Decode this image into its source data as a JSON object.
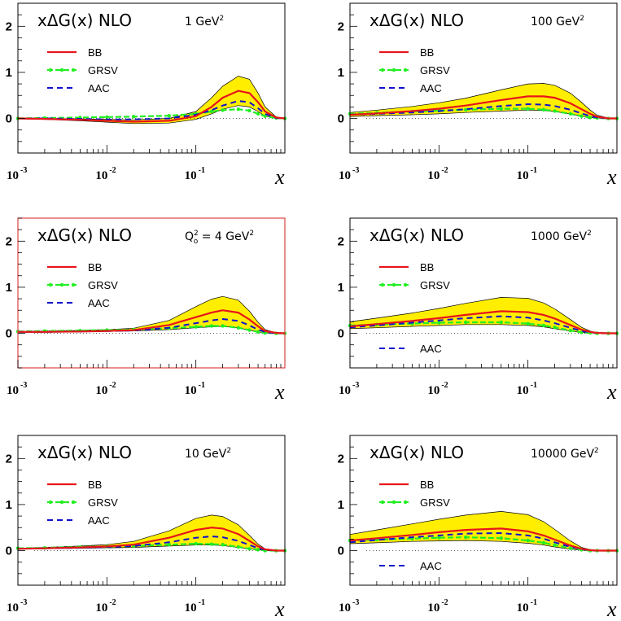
{
  "figure": {
    "title_text": "xΔG(x)  NLO",
    "x_axis_label": "x",
    "x_tick_labels": [
      {
        "base": "10",
        "exp": "-3"
      },
      {
        "base": "10",
        "exp": "-2"
      },
      {
        "base": "10",
        "exp": "-1"
      }
    ],
    "y_tick_labels": [
      "0",
      "1",
      "2"
    ],
    "colors": {
      "BB": "#e8151b",
      "GRSV": "#22ee22",
      "AAC": "#1010cc",
      "band": "#ffee00",
      "reference_box": "#dd4444"
    }
  },
  "chart_data": [
    {
      "type": "line",
      "title": "xΔG(x)  NLO",
      "scale_label": {
        "main": "1 GeV",
        "sup": "2"
      },
      "xlabel": "x",
      "xlog": true,
      "xlim": [
        0.001,
        1
      ],
      "ylim": [
        -0.75,
        2.5
      ],
      "legend": [
        "BB",
        "GRSV",
        "AAC"
      ],
      "legend_layout": "stacked-top-left",
      "x": [
        0.001,
        0.002,
        0.005,
        0.01,
        0.02,
        0.05,
        0.1,
        0.15,
        0.2,
        0.3,
        0.4,
        0.5,
        0.6,
        0.8,
        1.0
      ],
      "series": [
        {
          "name": "BB",
          "values": [
            0.0,
            -0.01,
            -0.03,
            -0.05,
            -0.07,
            -0.05,
            0.05,
            0.25,
            0.45,
            0.6,
            0.55,
            0.35,
            0.15,
            0.02,
            0.0
          ]
        },
        {
          "name": "GRSV",
          "values": [
            0.0,
            0.01,
            0.02,
            0.03,
            0.04,
            0.06,
            0.1,
            0.15,
            0.18,
            0.2,
            0.17,
            0.1,
            0.05,
            0.01,
            0.0
          ]
        },
        {
          "name": "AAC",
          "values": [
            0.0,
            0.0,
            -0.01,
            -0.02,
            -0.02,
            0.0,
            0.08,
            0.18,
            0.28,
            0.38,
            0.35,
            0.22,
            0.1,
            0.01,
            0.0
          ]
        }
      ],
      "band": {
        "upper": [
          0.01,
          0.0,
          -0.01,
          -0.02,
          -0.03,
          0.0,
          0.15,
          0.45,
          0.7,
          0.92,
          0.85,
          0.55,
          0.25,
          0.03,
          0.0
        ],
        "lower": [
          -0.01,
          -0.02,
          -0.05,
          -0.08,
          -0.11,
          -0.1,
          -0.02,
          0.1,
          0.2,
          0.28,
          0.25,
          0.15,
          0.05,
          0.01,
          0.0
        ]
      }
    },
    {
      "type": "line",
      "title": "xΔG(x)  NLO",
      "scale_label": {
        "main": "100 GeV",
        "sup": "2"
      },
      "xlabel": "x",
      "xlog": true,
      "xlim": [
        0.001,
        1
      ],
      "ylim": [
        -0.75,
        2.5
      ],
      "legend": [
        "BB",
        "GRSV",
        "AAC"
      ],
      "legend_layout": "stacked-top-left",
      "x": [
        0.001,
        0.002,
        0.005,
        0.01,
        0.02,
        0.05,
        0.1,
        0.15,
        0.2,
        0.3,
        0.4,
        0.5,
        0.6,
        0.8,
        1.0
      ],
      "series": [
        {
          "name": "BB",
          "values": [
            0.08,
            0.11,
            0.16,
            0.21,
            0.28,
            0.4,
            0.48,
            0.48,
            0.45,
            0.33,
            0.2,
            0.1,
            0.04,
            0.0,
            0.0
          ]
        },
        {
          "name": "GRSV",
          "values": [
            0.1,
            0.12,
            0.15,
            0.17,
            0.19,
            0.21,
            0.21,
            0.19,
            0.16,
            0.1,
            0.05,
            0.02,
            0.01,
            0.0,
            0.0
          ]
        },
        {
          "name": "AAC",
          "values": [
            0.08,
            0.1,
            0.13,
            0.16,
            0.2,
            0.27,
            0.31,
            0.3,
            0.27,
            0.19,
            0.11,
            0.05,
            0.02,
            0.0,
            0.0
          ]
        }
      ],
      "band": {
        "upper": [
          0.13,
          0.18,
          0.26,
          0.34,
          0.44,
          0.62,
          0.75,
          0.76,
          0.72,
          0.55,
          0.35,
          0.18,
          0.07,
          0.01,
          0.0
        ],
        "lower": [
          0.04,
          0.06,
          0.08,
          0.1,
          0.13,
          0.16,
          0.18,
          0.17,
          0.15,
          0.1,
          0.05,
          0.02,
          0.01,
          0.0,
          0.0
        ]
      }
    },
    {
      "type": "line",
      "title": "xΔG(x)  NLO",
      "scale_label": {
        "prefix": "Q",
        "sub": "o",
        "main": " = 4 GeV",
        "sup": "2"
      },
      "xlabel": "x",
      "xlog": true,
      "xlim": [
        0.001,
        1
      ],
      "ylim": [
        -0.75,
        2.5
      ],
      "legend": [
        "BB",
        "GRSV",
        "AAC"
      ],
      "legend_layout": "stacked-top-left",
      "x": [
        0.001,
        0.002,
        0.005,
        0.01,
        0.02,
        0.05,
        0.1,
        0.15,
        0.2,
        0.3,
        0.4,
        0.5,
        0.6,
        0.8,
        1.0
      ],
      "series": [
        {
          "name": "BB",
          "values": [
            0.03,
            0.03,
            0.04,
            0.05,
            0.07,
            0.18,
            0.35,
            0.45,
            0.5,
            0.45,
            0.3,
            0.15,
            0.05,
            0.01,
            0.0
          ]
        },
        {
          "name": "GRSV",
          "values": [
            0.04,
            0.05,
            0.06,
            0.07,
            0.08,
            0.11,
            0.14,
            0.16,
            0.16,
            0.12,
            0.07,
            0.03,
            0.01,
            0.0,
            0.0
          ]
        },
        {
          "name": "AAC",
          "values": [
            0.03,
            0.03,
            0.04,
            0.05,
            0.06,
            0.12,
            0.22,
            0.28,
            0.31,
            0.27,
            0.17,
            0.08,
            0.03,
            0.0,
            0.0
          ]
        }
      ],
      "band": {
        "upper": [
          0.04,
          0.05,
          0.06,
          0.08,
          0.11,
          0.28,
          0.58,
          0.74,
          0.8,
          0.72,
          0.48,
          0.24,
          0.08,
          0.01,
          0.0
        ],
        "lower": [
          0.02,
          0.02,
          0.03,
          0.04,
          0.05,
          0.08,
          0.12,
          0.14,
          0.15,
          0.12,
          0.07,
          0.03,
          0.01,
          0.0,
          0.0
        ]
      }
    },
    {
      "type": "line",
      "title": "xΔG(x)  NLO",
      "scale_label": {
        "main": "1000 GeV",
        "sup": "2"
      },
      "xlabel": "x",
      "xlog": true,
      "xlim": [
        0.001,
        1
      ],
      "ylim": [
        -0.75,
        2.5
      ],
      "legend": [
        "BB",
        "GRSV",
        "AAC"
      ],
      "legend_layout": "BB and GRSV top-left, AAC bottom-left",
      "x": [
        0.001,
        0.002,
        0.005,
        0.01,
        0.02,
        0.05,
        0.1,
        0.15,
        0.2,
        0.3,
        0.4,
        0.5,
        0.6,
        0.8,
        1.0
      ],
      "series": [
        {
          "name": "BB",
          "values": [
            0.15,
            0.2,
            0.27,
            0.33,
            0.4,
            0.48,
            0.46,
            0.4,
            0.32,
            0.18,
            0.08,
            0.03,
            0.01,
            0.0,
            0.0
          ]
        },
        {
          "name": "GRSV",
          "values": [
            0.17,
            0.19,
            0.21,
            0.23,
            0.24,
            0.24,
            0.21,
            0.17,
            0.13,
            0.06,
            0.02,
            0.01,
            0.0,
            0.0,
            0.0
          ]
        },
        {
          "name": "AAC",
          "values": [
            0.13,
            0.17,
            0.23,
            0.28,
            0.33,
            0.37,
            0.34,
            0.28,
            0.22,
            0.12,
            0.05,
            0.02,
            0.01,
            0.0,
            0.0
          ]
        }
      ],
      "band": {
        "upper": [
          0.25,
          0.33,
          0.44,
          0.54,
          0.65,
          0.78,
          0.76,
          0.66,
          0.53,
          0.3,
          0.13,
          0.05,
          0.01,
          0.0,
          0.0
        ],
        "lower": [
          0.1,
          0.12,
          0.15,
          0.17,
          0.19,
          0.19,
          0.17,
          0.14,
          0.1,
          0.05,
          0.02,
          0.01,
          0.0,
          0.0,
          0.0
        ]
      }
    },
    {
      "type": "line",
      "title": "xΔG(x)  NLO",
      "scale_label": {
        "main": "10 GeV",
        "sup": "2"
      },
      "xlabel": "x",
      "xlog": true,
      "xlim": [
        0.001,
        1
      ],
      "ylim": [
        -0.75,
        2.5
      ],
      "legend": [
        "BB",
        "GRSV",
        "AAC"
      ],
      "legend_layout": "stacked-top-left",
      "x": [
        0.001,
        0.002,
        0.005,
        0.01,
        0.02,
        0.05,
        0.1,
        0.15,
        0.2,
        0.3,
        0.4,
        0.5,
        0.6,
        0.8,
        1.0
      ],
      "series": [
        {
          "name": "BB",
          "values": [
            0.04,
            0.05,
            0.07,
            0.09,
            0.13,
            0.28,
            0.45,
            0.5,
            0.48,
            0.36,
            0.21,
            0.09,
            0.03,
            0.0,
            0.0
          ]
        },
        {
          "name": "GRSV",
          "values": [
            0.05,
            0.06,
            0.08,
            0.09,
            0.1,
            0.13,
            0.15,
            0.14,
            0.13,
            0.08,
            0.04,
            0.02,
            0.0,
            0.0,
            0.0
          ]
        },
        {
          "name": "AAC",
          "values": [
            0.04,
            0.05,
            0.06,
            0.08,
            0.1,
            0.18,
            0.28,
            0.31,
            0.29,
            0.21,
            0.12,
            0.05,
            0.02,
            0.0,
            0.0
          ]
        }
      ],
      "band": {
        "upper": [
          0.05,
          0.07,
          0.1,
          0.13,
          0.2,
          0.43,
          0.7,
          0.77,
          0.74,
          0.56,
          0.33,
          0.14,
          0.04,
          0.0,
          0.0
        ],
        "lower": [
          0.03,
          0.04,
          0.05,
          0.06,
          0.07,
          0.1,
          0.12,
          0.12,
          0.11,
          0.07,
          0.04,
          0.02,
          0.0,
          0.0,
          0.0
        ]
      }
    },
    {
      "type": "line",
      "title": "xΔG(x)  NLO",
      "scale_label": {
        "main": "10000 GeV",
        "sup": "2"
      },
      "xlabel": "x",
      "xlog": true,
      "xlim": [
        0.001,
        1
      ],
      "ylim": [
        -0.75,
        2.5
      ],
      "legend": [
        "BB",
        "GRSV",
        "AAC"
      ],
      "legend_layout": "BB and GRSV top-left, AAC bottom-left",
      "x": [
        0.001,
        0.002,
        0.005,
        0.01,
        0.02,
        0.05,
        0.1,
        0.15,
        0.2,
        0.3,
        0.4,
        0.5,
        0.6,
        0.8,
        1.0
      ],
      "series": [
        {
          "name": "BB",
          "values": [
            0.22,
            0.27,
            0.34,
            0.4,
            0.45,
            0.48,
            0.42,
            0.33,
            0.24,
            0.11,
            0.04,
            0.01,
            0.0,
            0.0,
            0.0
          ]
        },
        {
          "name": "GRSV",
          "values": [
            0.22,
            0.24,
            0.26,
            0.28,
            0.29,
            0.27,
            0.22,
            0.17,
            0.12,
            0.05,
            0.02,
            0.0,
            0.0,
            0.0,
            0.0
          ]
        },
        {
          "name": "AAC",
          "values": [
            0.18,
            0.23,
            0.29,
            0.33,
            0.37,
            0.38,
            0.33,
            0.26,
            0.18,
            0.08,
            0.03,
            0.01,
            0.0,
            0.0,
            0.0
          ]
        }
      ],
      "band": {
        "upper": [
          0.35,
          0.45,
          0.58,
          0.68,
          0.77,
          0.85,
          0.78,
          0.63,
          0.46,
          0.21,
          0.07,
          0.02,
          0.0,
          0.0,
          0.0
        ],
        "lower": [
          0.15,
          0.17,
          0.2,
          0.21,
          0.22,
          0.2,
          0.16,
          0.12,
          0.08,
          0.03,
          0.01,
          0.0,
          0.0,
          0.0,
          0.0
        ]
      }
    }
  ]
}
